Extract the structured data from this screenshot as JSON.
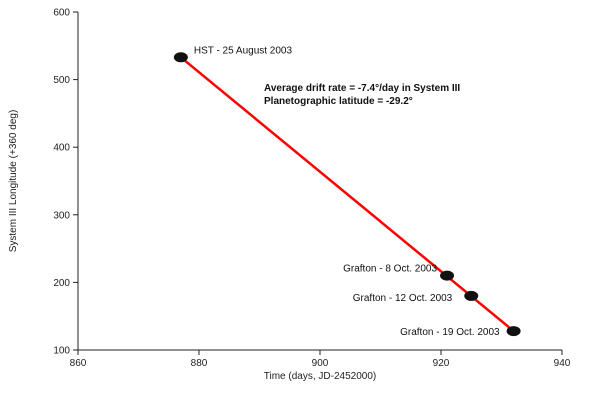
{
  "chart_data": {
    "type": "scatter",
    "xlabel": "Time (days, JD-2452000)",
    "ylabel": "System III Longitude (+360 deg)",
    "xlim": [
      860,
      940
    ],
    "ylim": [
      100,
      600
    ],
    "x_ticks": [
      860,
      880,
      900,
      920,
      940
    ],
    "y_ticks": [
      100,
      200,
      300,
      400,
      500,
      600
    ],
    "grid": false,
    "points": [
      {
        "x": 877,
        "y": 533,
        "label": "HST - 25 August 2003"
      },
      {
        "x": 921,
        "y": 210,
        "label": "Grafton - 8 Oct. 2003"
      },
      {
        "x": 925,
        "y": 180,
        "label": "Grafton - 12 Oct. 2003"
      },
      {
        "x": 932,
        "y": 128,
        "label": "Grafton - 19 Oct. 2003"
      }
    ],
    "fit_line": {
      "x": [
        877,
        932
      ],
      "y": [
        533,
        128
      ],
      "color": "#ff0000"
    },
    "annotations": [
      "Average drift rate = -7.4°/day in System III",
      "Planetographic latitude = -29.2°"
    ],
    "marker_color": "#111111"
  }
}
